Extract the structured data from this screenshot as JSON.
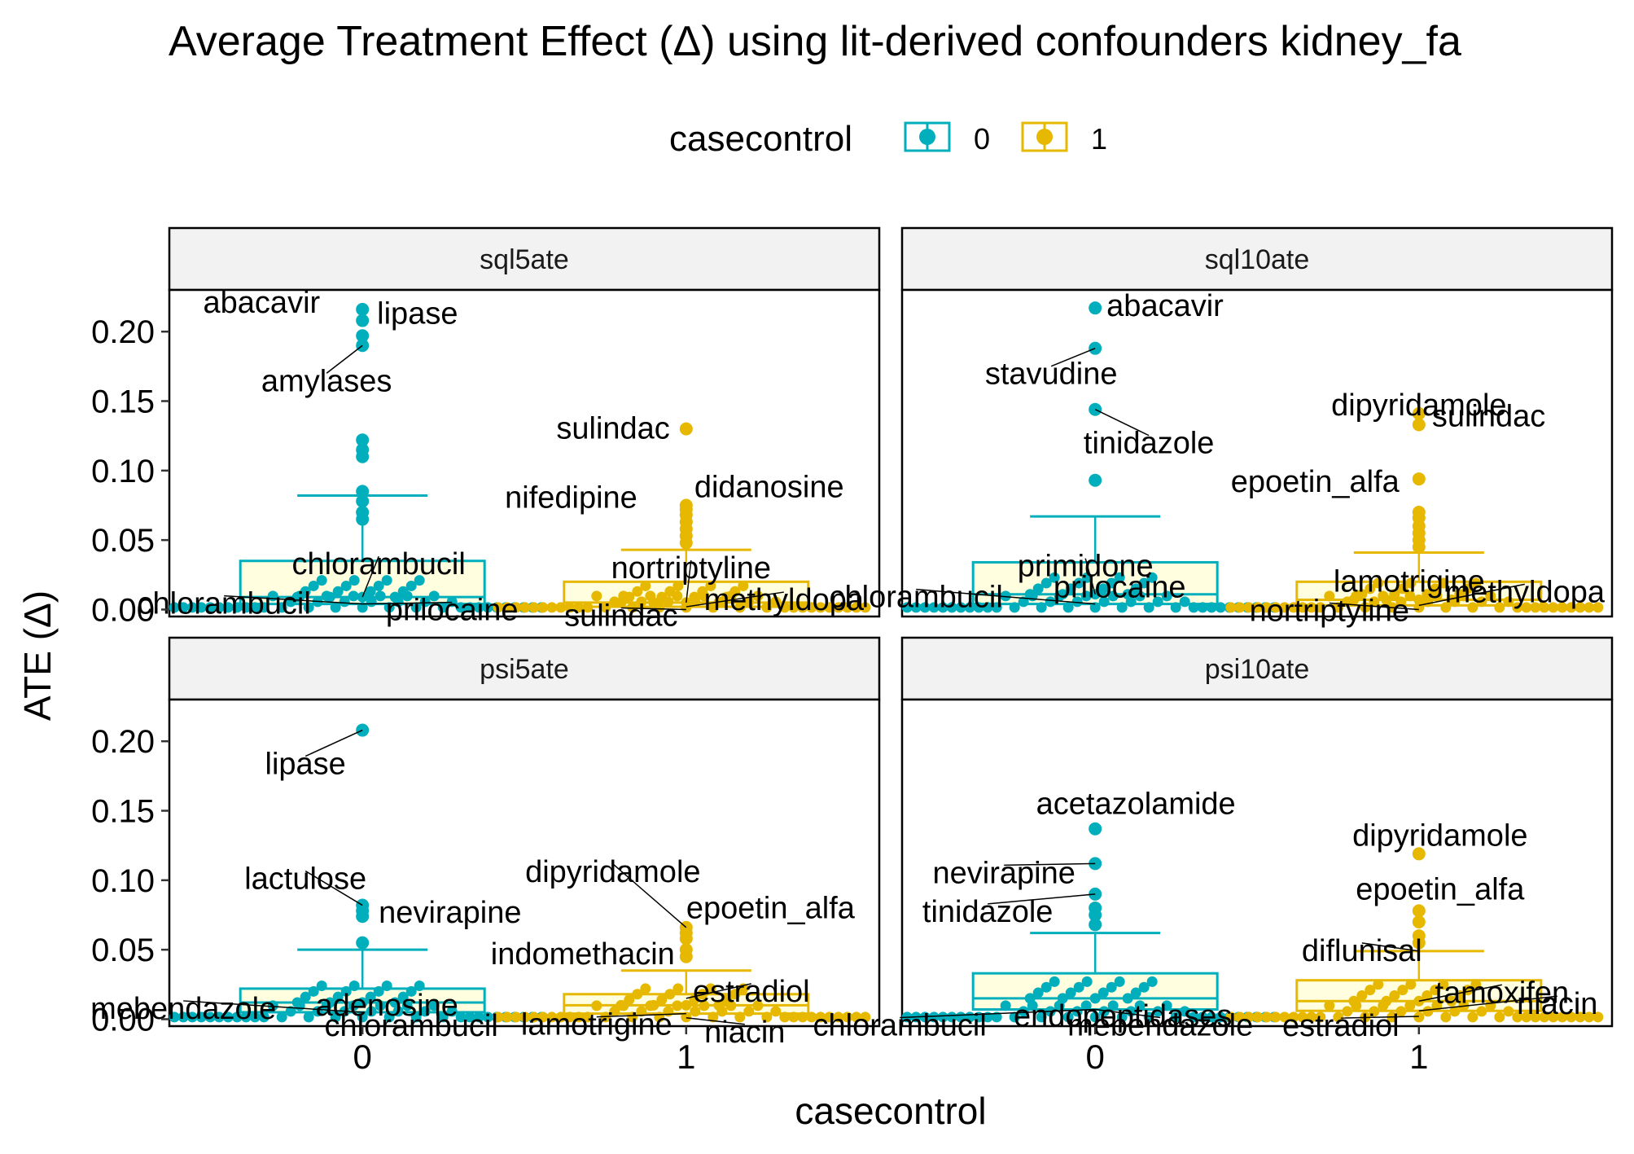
{
  "chart_data": {
    "type": "dotplot-boxplot",
    "title": "Average Treatment Effect (Δ) using lit-derived confounders kidney_fa",
    "xlabel": "casecontrol",
    "ylabel": "ATE (Δ)",
    "categories": [
      "0",
      "1"
    ],
    "ylim": [
      -0.005,
      0.23
    ],
    "yticks": [
      0.0,
      0.05,
      0.1,
      0.15,
      0.2
    ],
    "ytick_labels": [
      "0.00",
      "0.05",
      "0.10",
      "0.15",
      "0.20"
    ],
    "xtick_labels": [
      "0",
      "1"
    ],
    "colors": {
      "0": "#00AFBB",
      "1": "#E7B800",
      "box_fill": "#FFFFE0"
    },
    "legend": {
      "title": "casecontrol",
      "entries": [
        "0",
        "1"
      ],
      "placement": "top"
    },
    "panels": [
      {
        "name": "sql5ate",
        "boxes": [
          {
            "group": "0",
            "q1": 0.004,
            "median": 0.009,
            "q3": 0.035,
            "whisker_low": 0.0,
            "whisker_high": 0.082
          },
          {
            "group": "1",
            "q1": 0.002,
            "median": 0.005,
            "q3": 0.02,
            "whisker_low": 0.0,
            "whisker_high": 0.043
          }
        ],
        "outliers": [
          {
            "group": "0",
            "values": [
              0.216,
              0.208,
              0.197,
              0.19,
              0.122,
              0.115,
              0.11,
              0.085,
              0.078,
              0.07,
              0.065
            ]
          },
          {
            "group": "1",
            "values": [
              0.13,
              0.075,
              0.072,
              0.068,
              0.063,
              0.058,
              0.053,
              0.048
            ]
          }
        ],
        "labels": [
          {
            "text": "abacavir",
            "group": "0",
            "value": 0.216
          },
          {
            "text": "lipase",
            "group": "0",
            "value": 0.208
          },
          {
            "text": "amylases",
            "group": "0",
            "value": 0.19
          },
          {
            "text": "chlorambucil",
            "group": "0",
            "value": 0.009
          },
          {
            "text": "chlorambucil",
            "group": "0",
            "value": 0.004
          },
          {
            "text": "prilocaine",
            "group": "0",
            "value": 0.004
          },
          {
            "text": "sulindac",
            "group": "1",
            "value": 0.13
          },
          {
            "text": "didanosine",
            "group": "1",
            "value": 0.075
          },
          {
            "text": "nifedipine",
            "group": "1",
            "value": 0.072
          },
          {
            "text": "nortriptyline",
            "group": "1",
            "value": 0.005
          },
          {
            "text": "methyldopa",
            "group": "1",
            "value": 0.002
          },
          {
            "text": "sulindac",
            "group": "1",
            "value": 0.0
          }
        ]
      },
      {
        "name": "sql10ate",
        "boxes": [
          {
            "group": "0",
            "q1": 0.004,
            "median": 0.011,
            "q3": 0.034,
            "whisker_low": 0.0,
            "whisker_high": 0.067
          },
          {
            "group": "1",
            "q1": 0.003,
            "median": 0.007,
            "q3": 0.02,
            "whisker_low": 0.0,
            "whisker_high": 0.041
          }
        ],
        "outliers": [
          {
            "group": "0",
            "values": [
              0.217,
              0.188,
              0.144,
              0.093
            ]
          },
          {
            "group": "1",
            "values": [
              0.141,
              0.133,
              0.094,
              0.07,
              0.066,
              0.06,
              0.055,
              0.05,
              0.045
            ]
          }
        ],
        "labels": [
          {
            "text": "abacavir",
            "group": "0",
            "value": 0.217
          },
          {
            "text": "stavudine",
            "group": "0",
            "value": 0.188
          },
          {
            "text": "tinidazole",
            "group": "0",
            "value": 0.144
          },
          {
            "text": "primidone",
            "group": "0",
            "value": 0.011
          },
          {
            "text": "chlorambucil",
            "group": "0",
            "value": 0.004
          },
          {
            "text": "prilocaine",
            "group": "0",
            "value": 0.004
          },
          {
            "text": "dipyridamole",
            "group": "1",
            "value": 0.141
          },
          {
            "text": "sulindac",
            "group": "1",
            "value": 0.133
          },
          {
            "text": "epoetin_alfa",
            "group": "1",
            "value": 0.094
          },
          {
            "text": "lamotrigine",
            "group": "1",
            "value": 0.007
          },
          {
            "text": "methyldopa",
            "group": "1",
            "value": 0.003
          },
          {
            "text": "nortriptyline",
            "group": "1",
            "value": 0.0
          }
        ]
      },
      {
        "name": "psi5ate",
        "boxes": [
          {
            "group": "0",
            "q1": 0.005,
            "median": 0.012,
            "q3": 0.022,
            "whisker_low": 0.0,
            "whisker_high": 0.05
          },
          {
            "group": "1",
            "q1": 0.004,
            "median": 0.01,
            "q3": 0.018,
            "whisker_low": 0.0,
            "whisker_high": 0.035
          }
        ],
        "outliers": [
          {
            "group": "0",
            "values": [
              0.208,
              0.082,
              0.078,
              0.074,
              0.055
            ]
          },
          {
            "group": "1",
            "values": [
              0.066,
              0.062,
              0.058,
              0.05,
              0.045
            ]
          }
        ],
        "labels": [
          {
            "text": "lipase",
            "group": "0",
            "value": 0.208
          },
          {
            "text": "lactulose",
            "group": "0",
            "value": 0.082
          },
          {
            "text": "nevirapine",
            "group": "0",
            "value": 0.074
          },
          {
            "text": "adenosine",
            "group": "0",
            "value": 0.012
          },
          {
            "text": "mebendazole",
            "group": "0",
            "value": 0.005
          },
          {
            "text": "chlorambucil",
            "group": "0",
            "value": 0.002
          },
          {
            "text": "dipyridamole",
            "group": "1",
            "value": 0.066
          },
          {
            "text": "epoetin_alfa",
            "group": "1",
            "value": 0.062
          },
          {
            "text": "indomethacin",
            "group": "1",
            "value": 0.05
          },
          {
            "text": "estradiol",
            "group": "1",
            "value": 0.015
          },
          {
            "text": "lamotrigine",
            "group": "1",
            "value": 0.004
          },
          {
            "text": "niacin",
            "group": "1",
            "value": 0.001
          }
        ]
      },
      {
        "name": "psi10ate",
        "boxes": [
          {
            "group": "0",
            "q1": 0.007,
            "median": 0.015,
            "q3": 0.033,
            "whisker_low": 0.0,
            "whisker_high": 0.062
          },
          {
            "group": "1",
            "q1": 0.006,
            "median": 0.013,
            "q3": 0.028,
            "whisker_low": 0.0,
            "whisker_high": 0.049
          }
        ],
        "outliers": [
          {
            "group": "0",
            "values": [
              0.137,
              0.112,
              0.09,
              0.08,
              0.075,
              0.068
            ]
          },
          {
            "group": "1",
            "values": [
              0.119,
              0.078,
              0.07,
              0.06,
              0.055
            ]
          }
        ],
        "labels": [
          {
            "text": "acetazolamide",
            "group": "0",
            "value": 0.137
          },
          {
            "text": "nevirapine",
            "group": "0",
            "value": 0.112
          },
          {
            "text": "tinidazole",
            "group": "0",
            "value": 0.09
          },
          {
            "text": "endopeptidases",
            "group": "0",
            "value": 0.015
          },
          {
            "text": "chlorambucil",
            "group": "0",
            "value": 0.007
          },
          {
            "text": "mebendazole",
            "group": "0",
            "value": 0.007
          },
          {
            "text": "dipyridamole",
            "group": "1",
            "value": 0.119
          },
          {
            "text": "epoetin_alfa",
            "group": "1",
            "value": 0.078
          },
          {
            "text": "diflunisal",
            "group": "1",
            "value": 0.049
          },
          {
            "text": "niacin",
            "group": "1",
            "value": 0.006
          },
          {
            "text": "tamoxifen",
            "group": "1",
            "value": 0.013
          },
          {
            "text": "estradiol",
            "group": "1",
            "value": 0.002
          }
        ]
      }
    ]
  }
}
